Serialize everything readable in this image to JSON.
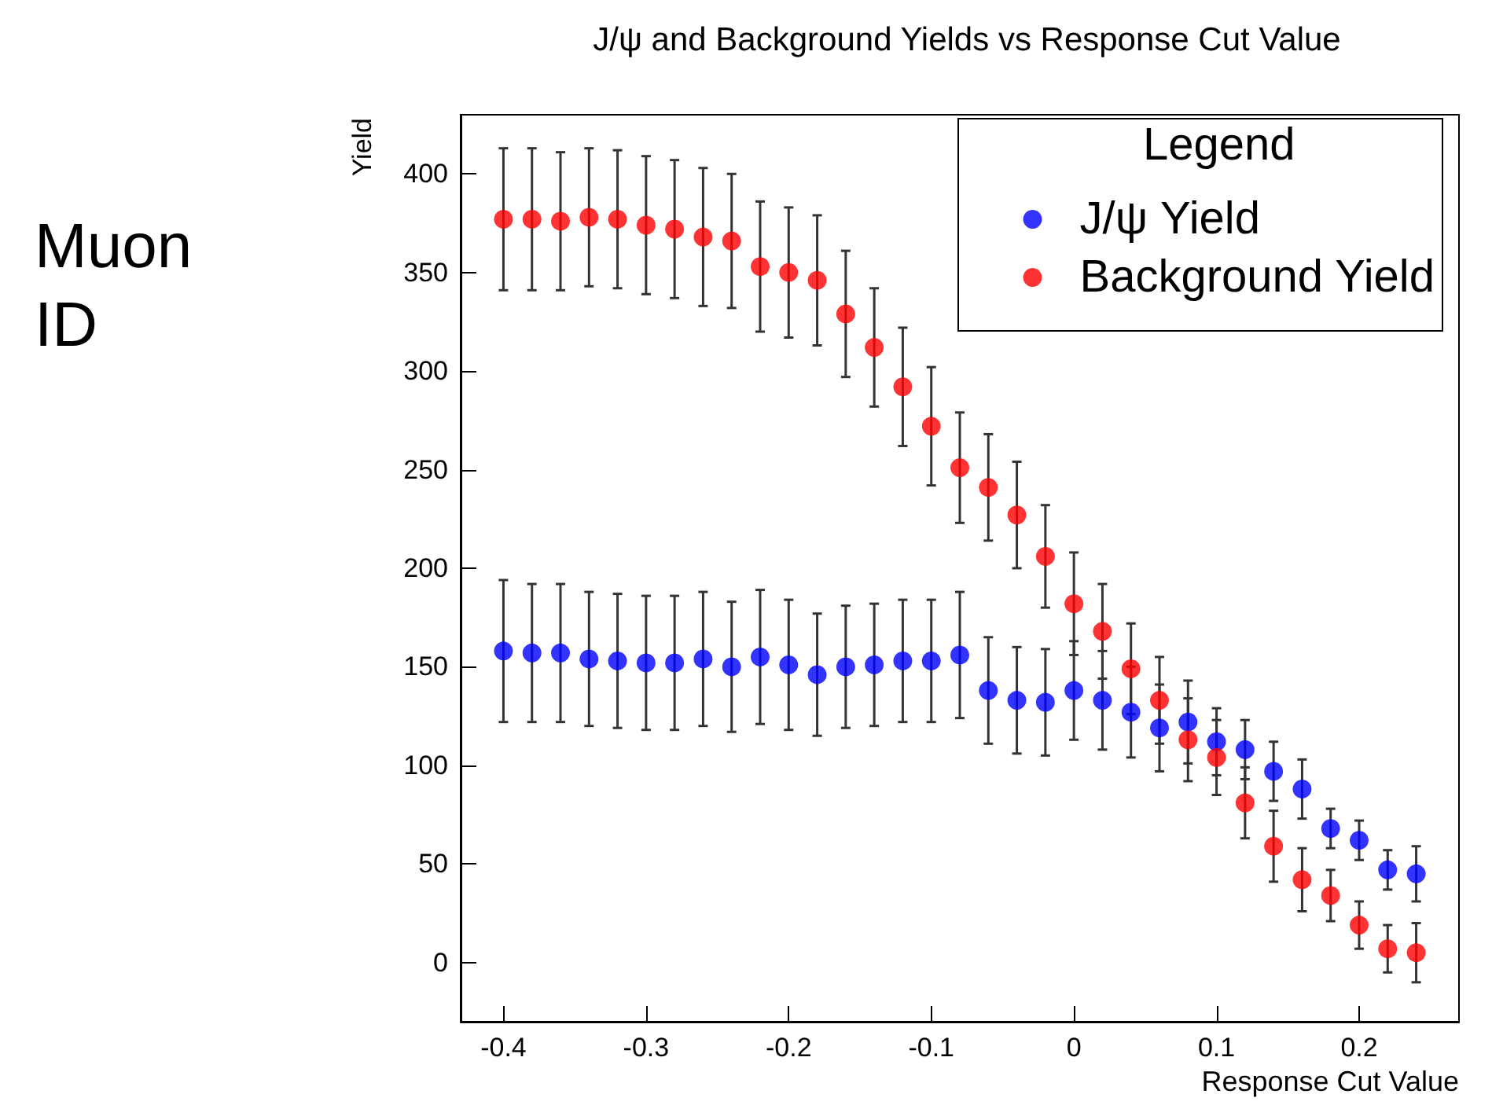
{
  "chart_data": {
    "type": "scatter",
    "title": "J/ψ and Background Yields vs Response Cut Value",
    "xlabel": "Response Cut Value",
    "ylabel": "Yield",
    "legend_title": "Legend",
    "annotations": [
      "Muon ID"
    ],
    "x": [
      -0.4,
      -0.38,
      -0.36,
      -0.34,
      -0.32,
      -0.3,
      -0.28,
      -0.26,
      -0.24,
      -0.22,
      -0.2,
      -0.18,
      -0.16,
      -0.14,
      -0.12,
      -0.1,
      -0.08,
      -0.06,
      -0.04,
      -0.02,
      0,
      0.02,
      0.04,
      0.06,
      0.08,
      0.1,
      0.12,
      0.14,
      0.16,
      0.18,
      0.2,
      0.22,
      0.24
    ],
    "series": [
      {
        "name": "J/ψ Yield",
        "color": "#0000ff",
        "values": [
          158,
          157,
          157,
          154,
          153,
          152,
          152,
          154,
          150,
          155,
          151,
          146,
          150,
          151,
          153,
          153,
          156,
          138,
          133,
          132,
          138,
          133,
          127,
          119,
          122,
          112,
          108,
          97,
          88,
          68,
          62,
          47,
          45
        ],
        "errors": [
          36,
          35,
          35,
          34,
          34,
          34,
          34,
          34,
          33,
          34,
          33,
          31,
          31,
          31,
          31,
          31,
          32,
          27,
          27,
          27,
          25,
          25,
          23,
          22,
          21,
          17,
          15,
          15,
          15,
          10,
          10,
          10,
          14
        ]
      },
      {
        "name": "Background Yield",
        "color": "#ff0000",
        "values": [
          377,
          377,
          376,
          378,
          377,
          374,
          372,
          368,
          366,
          353,
          350,
          346,
          329,
          312,
          292,
          272,
          251,
          241,
          227,
          206,
          182,
          168,
          149,
          133,
          113,
          104,
          81,
          59,
          42,
          34,
          19,
          7,
          5
        ],
        "errors": [
          36,
          36,
          35,
          35,
          35,
          35,
          35,
          35,
          34,
          33,
          33,
          33,
          32,
          30,
          30,
          30,
          28,
          27,
          27,
          26,
          26,
          24,
          23,
          22,
          21,
          19,
          18,
          18,
          16,
          13,
          12,
          12,
          15
        ]
      }
    ],
    "xlim": [
      -0.43,
      0.27
    ],
    "ylim": [
      -30,
      430
    ],
    "xticks": [
      -0.4,
      -0.3,
      -0.2,
      -0.1,
      0,
      0.1,
      0.2
    ],
    "yticks": [
      0,
      50,
      100,
      150,
      200,
      250,
      300,
      350,
      400
    ],
    "marker": "circle",
    "grid": false,
    "legend": "top right"
  }
}
